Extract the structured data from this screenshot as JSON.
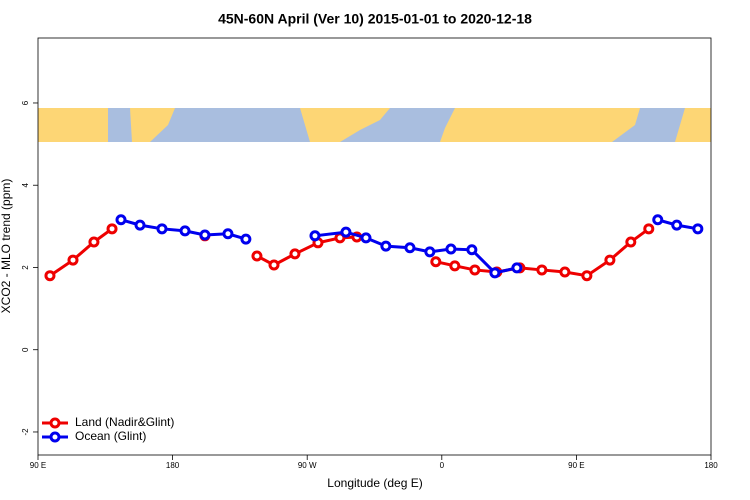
{
  "chart_data": {
    "type": "line",
    "title": "45N-60N April (Ver 10)   2015-01-01 to 2020-12-18",
    "x_label": "Longitude (deg E)",
    "y_label": "XCO2 - MLO trend (ppm)",
    "xlim": [
      90,
      540
    ],
    "xticks": [
      {
        "value": 90,
        "label": "90 E"
      },
      180,
      {
        "value": 270,
        "label": "90 W"
      },
      {
        "value": 360,
        "label": "0"
      },
      {
        "value": 450,
        "label": "90 E"
      },
      {
        "value": 540,
        "label": "180"
      }
    ],
    "ylim": [
      -2.56,
      7.58
    ],
    "yticks": [
      -2,
      0,
      2,
      4,
      6
    ],
    "legend": "bottom-left",
    "series": [
      {
        "name": "Land (Nadir&Glint)",
        "color": "#ee0000",
        "x": [
          98,
          113.4,
          127.4,
          139.5,
          null,
          201.6,
          null,
          236.4,
          247.8,
          261.8,
          277.2,
          291.9,
          303.2,
          null,
          356,
          368.7,
          382.1,
          396.8,
          412.2,
          426.9,
          442.3,
          457,
          472.4,
          486.4,
          498.4
        ],
        "values": [
          1.8,
          2.18,
          2.62,
          2.94,
          null,
          2.77,
          null,
          2.28,
          2.06,
          2.33,
          2.6,
          2.72,
          2.74,
          null,
          2.14,
          2.04,
          1.94,
          1.89,
          1.99,
          1.94,
          1.89,
          1.8,
          2.18,
          2.62,
          2.94
        ]
      },
      {
        "name": "Ocean (Glint)",
        "color": "#0000ee",
        "x": [
          145.5,
          158.2,
          172.9,
          188.3,
          201.6,
          217,
          229,
          null,
          275.2,
          295.9,
          309.3,
          322.6,
          338.7,
          352,
          366.1,
          380.1,
          395.5,
          410.2,
          null,
          504.4,
          517.1,
          531.2
        ],
        "values": [
          3.16,
          3.03,
          2.94,
          2.89,
          2.79,
          2.82,
          2.69,
          null,
          2.77,
          2.86,
          2.72,
          2.52,
          2.48,
          2.38,
          2.45,
          2.43,
          1.87,
          1.99,
          null,
          3.16,
          3.03,
          2.94
        ]
      }
    ]
  }
}
